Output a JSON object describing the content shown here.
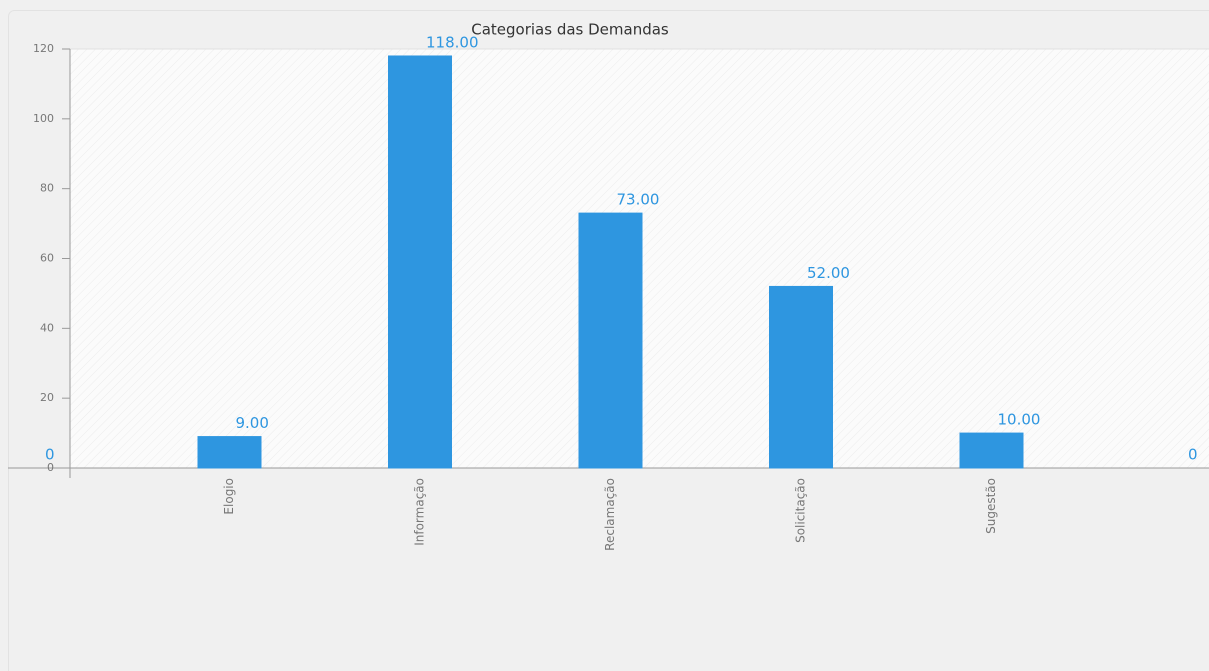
{
  "chart_data": {
    "type": "bar",
    "title": "Categorias das Demandas",
    "categories": [
      null,
      "Elogio",
      "Informação",
      "Reclamação",
      "Solicitação",
      "Sugestão",
      null
    ],
    "values": [
      0,
      9,
      118,
      73,
      52,
      10,
      0
    ],
    "value_labels": [
      "0",
      "9.00",
      "118.00",
      "73.00",
      "52.00",
      "10.00",
      "0"
    ],
    "color": "#2e96e0",
    "ylim": [
      0,
      120
    ],
    "yticks": [
      0,
      20,
      40,
      60,
      80,
      100,
      120
    ],
    "grid": false
  }
}
